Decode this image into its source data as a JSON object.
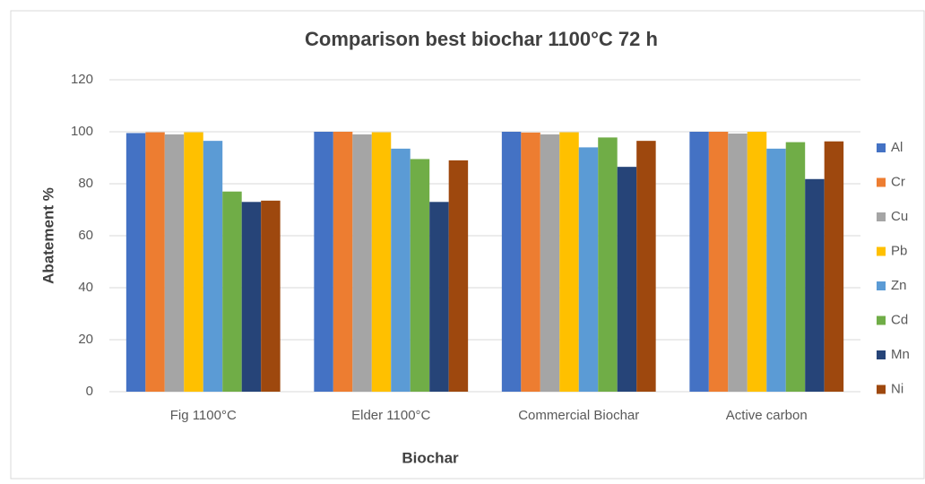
{
  "chart_data": {
    "type": "bar",
    "title": "Comparison best biochar 1100°C 72 h",
    "x_label": "Biochar",
    "y_label": "Abatement %",
    "categories": [
      "Fig 1100°C",
      "Elder 1100°C",
      "Commercial Biochar",
      "Active carbon"
    ],
    "series": [
      {
        "name": "Al",
        "color": "#4472c4",
        "values": [
          99.5,
          100,
          100,
          100
        ]
      },
      {
        "name": "Cr",
        "color": "#ed7d31",
        "values": [
          99.8,
          100,
          99.7,
          100
        ]
      },
      {
        "name": "Cu",
        "color": "#a5a5a5",
        "values": [
          99,
          99,
          99,
          99.3
        ]
      },
      {
        "name": "Pb",
        "color": "#ffc000",
        "values": [
          99.8,
          99.8,
          99.8,
          100
        ]
      },
      {
        "name": "Zn",
        "color": "#5b9bd5",
        "values": [
          96.5,
          93.5,
          94,
          93.5
        ]
      },
      {
        "name": "Cd",
        "color": "#70ad47",
        "values": [
          77,
          89.5,
          97.8,
          96
        ]
      },
      {
        "name": "Mn",
        "color": "#264478",
        "values": [
          73,
          73,
          86.5,
          81.8
        ]
      },
      {
        "name": "Ni",
        "color": "#9e480e",
        "values": [
          73.5,
          89,
          96.5,
          96.3
        ]
      }
    ],
    "ylim": [
      0,
      120
    ],
    "yticks": [
      0,
      20,
      40,
      60,
      80,
      100,
      120
    ],
    "grid": true,
    "legend": "right"
  }
}
